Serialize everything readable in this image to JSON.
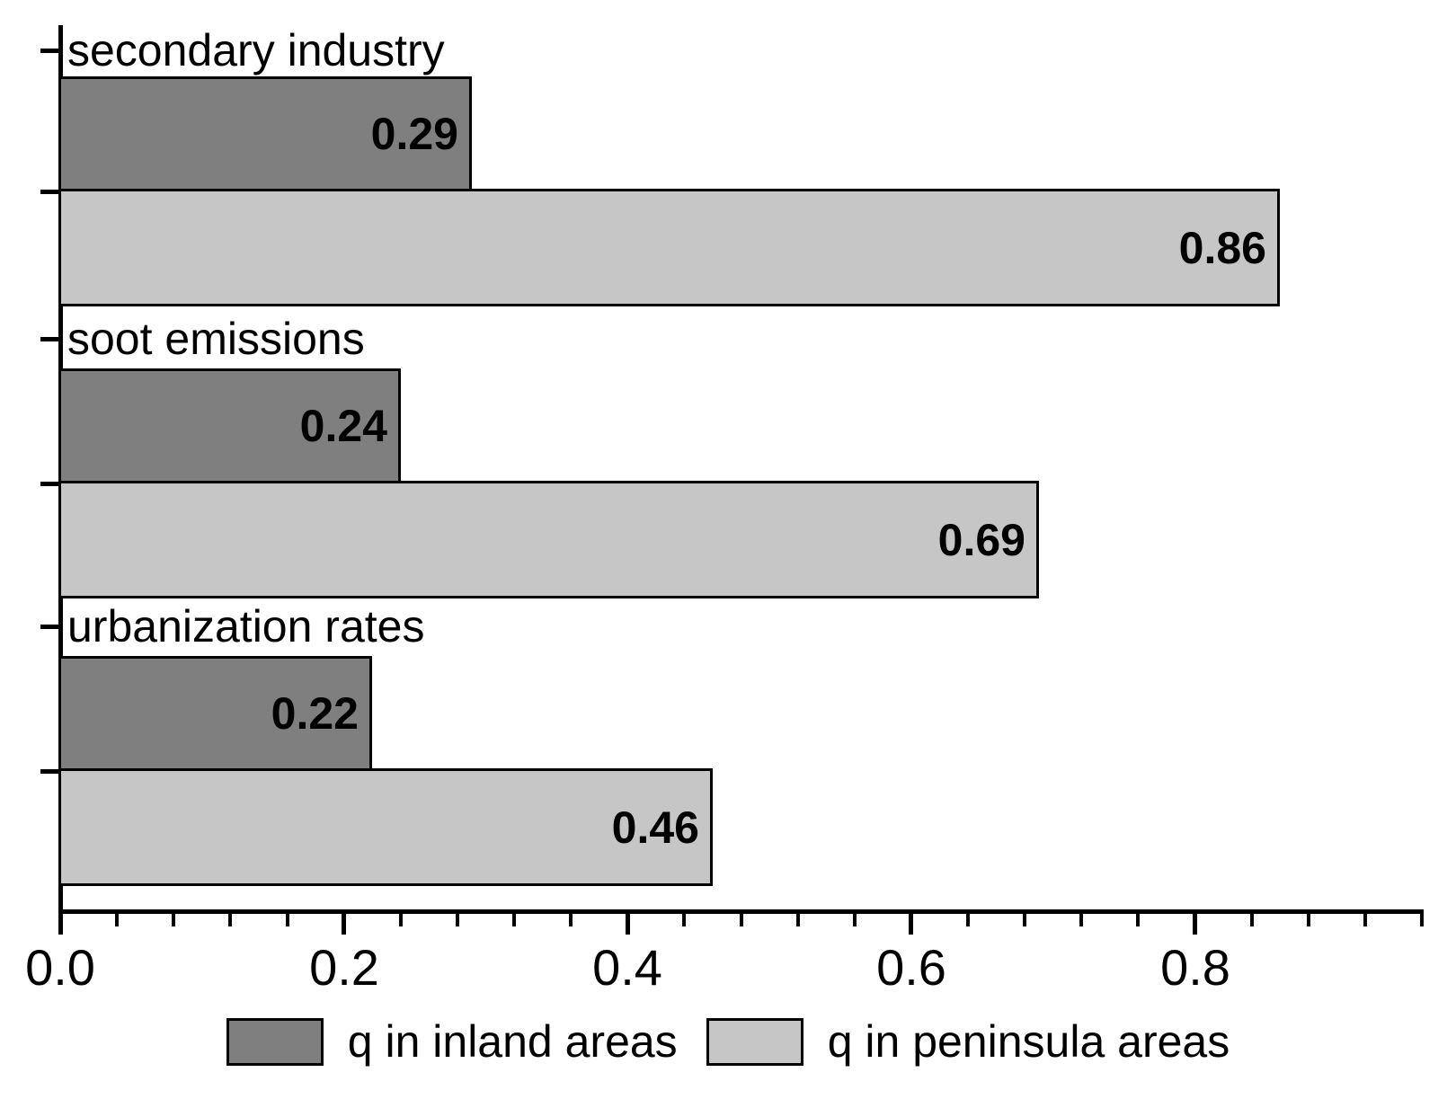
{
  "chart_data": {
    "type": "bar",
    "orientation": "horizontal",
    "title": "",
    "xlabel": "",
    "ylabel": "",
    "categories": [
      "secondary industry",
      "soot emissions",
      "urbanization rates"
    ],
    "series": [
      {
        "name": "q in inland areas",
        "color": "#7f7f7f",
        "values": [
          0.29,
          0.24,
          0.22
        ],
        "value_labels": [
          "0.29",
          "0.24",
          "0.22"
        ]
      },
      {
        "name": "q in peninsula areas",
        "color": "#c6c6c6",
        "values": [
          0.86,
          0.69,
          0.46
        ],
        "value_labels": [
          "0.86",
          "0.69",
          "0.46"
        ]
      }
    ],
    "xlim": [
      0,
      0.96
    ],
    "x_major_ticks": [
      {
        "value": 0.0,
        "label": "0.0"
      },
      {
        "value": 0.2,
        "label": "0.2"
      },
      {
        "value": 0.4,
        "label": "0.4"
      },
      {
        "value": 0.6,
        "label": "0.6"
      },
      {
        "value": 0.8,
        "label": "0.8"
      }
    ],
    "x_minor_interval": 0.04,
    "grid": false,
    "legend_position": "bottom",
    "axis_color": "#000000",
    "bar_border_color": "#000000",
    "text_color": "#000000",
    "value_labels_inside_bar": true
  }
}
